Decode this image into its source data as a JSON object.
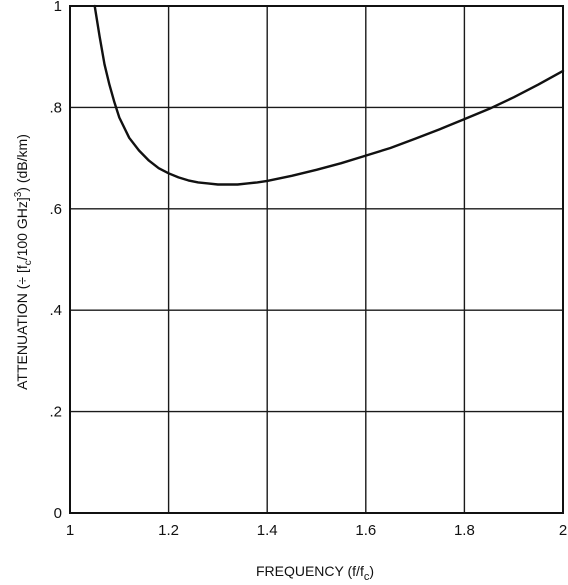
{
  "chart_data": {
    "type": "line",
    "title": "",
    "xlabel": "FREQUENCY (f/f_c)",
    "ylabel": "ATTENUATION (÷ [f_c/100 GHz]^3) (dB/km)",
    "xlim": [
      1,
      2
    ],
    "ylim": [
      0,
      1
    ],
    "grid": true,
    "x_ticks": [
      {
        "value": 1,
        "label": "1"
      },
      {
        "value": 1.2,
        "label": "1.2"
      },
      {
        "value": 1.4,
        "label": "1.4"
      },
      {
        "value": 1.6,
        "label": "1.6"
      },
      {
        "value": 1.8,
        "label": "1.8"
      },
      {
        "value": 2,
        "label": "2"
      }
    ],
    "y_ticks": [
      {
        "value": 0,
        "label": "0"
      },
      {
        "value": 0.2,
        "label": ".2"
      },
      {
        "value": 0.4,
        "label": ".4"
      },
      {
        "value": 0.6,
        "label": ".6"
      },
      {
        "value": 0.8,
        "label": ".8"
      },
      {
        "value": 1,
        "label": "1"
      }
    ],
    "series": [
      {
        "x": [
          1.05,
          1.06,
          1.07,
          1.08,
          1.09,
          1.1,
          1.12,
          1.14,
          1.16,
          1.18,
          1.2,
          1.22,
          1.24,
          1.26,
          1.28,
          1.3,
          1.32,
          1.34,
          1.36,
          1.38,
          1.4,
          1.45,
          1.5,
          1.55,
          1.6,
          1.65,
          1.7,
          1.75,
          1.8,
          1.85,
          1.9,
          1.95,
          2.0
        ],
        "y": [
          1.0,
          0.94,
          0.885,
          0.845,
          0.81,
          0.78,
          0.74,
          0.715,
          0.695,
          0.68,
          0.67,
          0.662,
          0.656,
          0.652,
          0.65,
          0.648,
          0.648,
          0.648,
          0.65,
          0.652,
          0.655,
          0.665,
          0.677,
          0.69,
          0.705,
          0.72,
          0.738,
          0.757,
          0.777,
          0.797,
          0.82,
          0.845,
          0.872
        ]
      }
    ]
  }
}
